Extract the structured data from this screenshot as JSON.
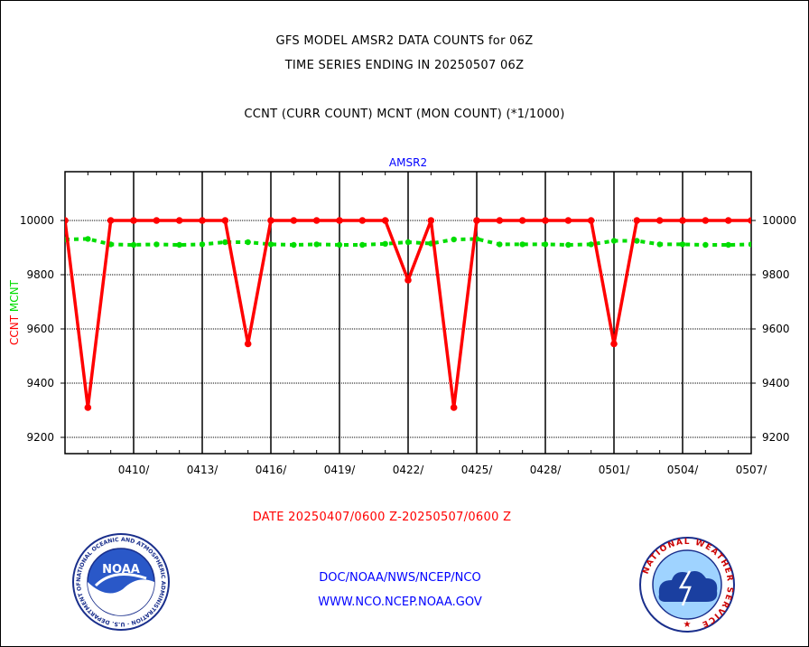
{
  "header": {
    "line1": "GFS MODEL AMSR2 DATA COUNTS for 06Z",
    "line2": "TIME SERIES ENDING IN 20250507 06Z",
    "line3": "CCNT (CURR COUNT) MCNT (MON COUNT) (*1/1000)"
  },
  "footer": {
    "date_range": "DATE 20250407/0600 Z-20250507/0600 Z",
    "credit1": "DOC/NOAA/NWS/NCEP/NCO",
    "credit2": "WWW.NCO.NCEP.NOAA.GOV"
  },
  "logos": {
    "noaa_text": "NOAA",
    "noaa_ring": "NATIONAL OCEANIC AND ATMOSPHERIC ADMINISTRATION · U.S. DEPARTMENT OF COMMERCE",
    "nws_ring": "NATIONAL WEATHER SERVICE"
  },
  "colors": {
    "ccnt": "#ff0000",
    "mcnt": "#00dd00",
    "text_blue": "#0000ff"
  },
  "chart_data": {
    "type": "line",
    "title": "AMSR2",
    "ylabel_parts": [
      {
        "text": "CCNT",
        "color": "#ff0000"
      },
      {
        "text": "MCNT",
        "color": "#00dd00"
      }
    ],
    "ylim": [
      9140,
      10180
    ],
    "yticks": [
      9200,
      9400,
      9600,
      9800,
      10000
    ],
    "ytick_labels": [
      "9200",
      "9400",
      "9600",
      "9800",
      "10000"
    ],
    "x_range": [
      0,
      30
    ],
    "x_ticks": [
      3,
      6,
      9,
      12,
      15,
      18,
      21,
      24,
      27,
      30
    ],
    "x_tick_labels": [
      "0410/",
      "0413/",
      "0416/",
      "0419/",
      "0422/",
      "0425/",
      "0428/",
      "0501/",
      "0504/",
      "0507/"
    ],
    "grid": true,
    "series": [
      {
        "name": "CCNT",
        "color": "#ff0000",
        "style": "solid",
        "values": [
          10000,
          9310,
          10000,
          10000,
          10000,
          10000,
          10000,
          10000,
          9545,
          10000,
          10000,
          10000,
          10000,
          10000,
          10000,
          9780,
          10000,
          9310,
          10000,
          10000,
          10000,
          10000,
          10000,
          10000,
          9545,
          10000,
          10000,
          10000,
          10000,
          10000,
          10000
        ]
      },
      {
        "name": "MCNT",
        "color": "#00dd00",
        "style": "dashed",
        "values": [
          9930,
          9932,
          9912,
          9910,
          9912,
          9910,
          9912,
          9920,
          9920,
          9912,
          9910,
          9912,
          9910,
          9910,
          9914,
          9920,
          9915,
          9930,
          9932,
          9912,
          9912,
          9912,
          9910,
          9912,
          9925,
          9925,
          9912,
          9912,
          9910,
          9910,
          9912
        ]
      }
    ]
  }
}
